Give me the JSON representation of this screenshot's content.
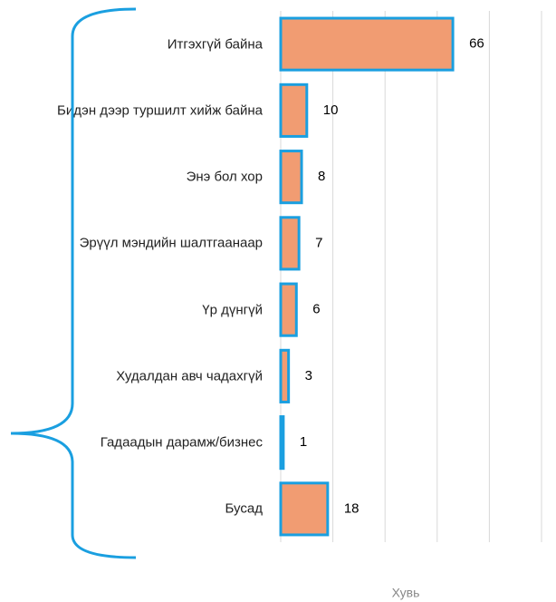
{
  "chart_data": {
    "type": "bar",
    "orientation": "horizontal",
    "categories": [
      "Итгэхгүй байна",
      "Бидэн дээр туршилт хийж байна",
      "Энэ бол хор",
      "Эрүүл мэндийн шалтгаанаар",
      "Үр дүнгүй",
      "Худалдан авч чадахгүй",
      "Гадаадын дарамж/бизнес",
      "Бусад"
    ],
    "values": [
      66,
      10,
      8,
      7,
      6,
      3,
      1,
      18
    ],
    "color": "#f19c72",
    "edge_color": "#1a9fe0",
    "xlabel": "Хувь",
    "xlim": [
      0,
      100
    ],
    "xticks": [
      0,
      20,
      40,
      60,
      80,
      100
    ],
    "grid": true
  }
}
